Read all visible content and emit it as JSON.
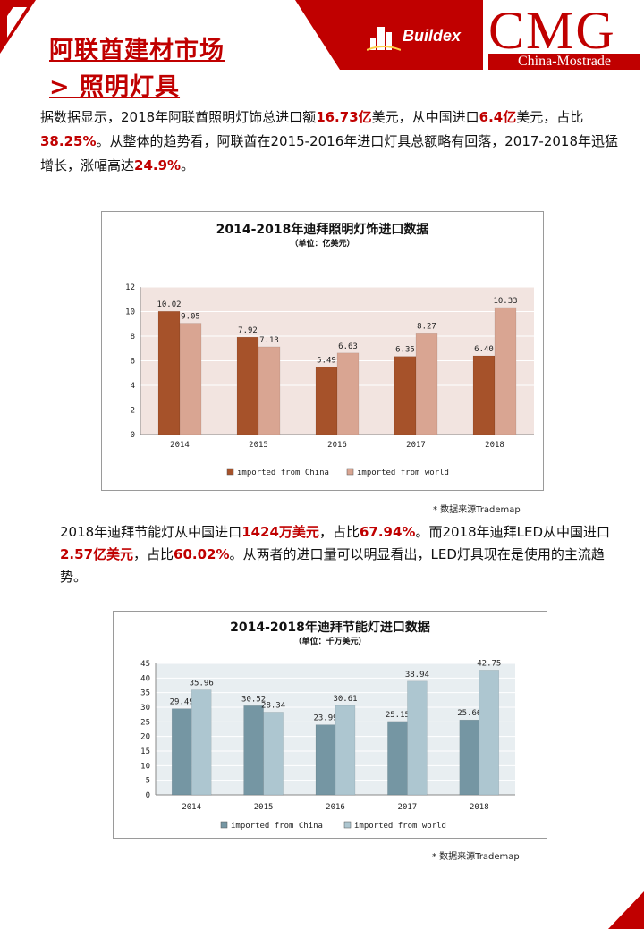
{
  "header": {
    "title_line1": "阿联酋建材市场",
    "title_line2": "> 照明灯具",
    "buildex": "Buildex",
    "cmg": "CMG",
    "cmg_sub": "China-Mostrade"
  },
  "para1": {
    "p1": "据数据显示，2018年阿联酋照明灯饰总进口额",
    "v1": "16.73亿",
    "p2": "美元，从中国进口",
    "v2": "6.4亿",
    "p3": "美元，占比",
    "v3": "38.25%",
    "p4": "。从整体的趋势看，阿联酋在2015-2016年进口灯具总额略有回落，2017-2018年迅猛增长，涨幅高达",
    "v4": "24.9%",
    "p5": "。"
  },
  "para2": {
    "p1": "2018年迪拜节能灯从中国进口",
    "v1": "1424万美元",
    "p2": "，占比",
    "v2": "67.94%",
    "p3": "。而2018年迪拜LED从中国进口",
    "v3": "2.57亿美元",
    "p4": "，占比",
    "v4": "60.02%",
    "p5": "。从两者的进口量可以明显看出，LED灯具现在是使用的主流趋势。"
  },
  "source1": "* 数据来源Trademap",
  "source2": "* 数据来源Trademap",
  "colors": {
    "accent": "#c00000",
    "chart1_china": "#a6522a",
    "chart1_world": "#d9a592",
    "chart1_bg": "#f2e4e0",
    "chart2_china": "#7596a3",
    "chart2_world": "#adc6d0",
    "chart2_bg": "#e8eef1"
  },
  "chart_data": [
    {
      "type": "bar",
      "title": "2014-2018年迪拜照明灯饰进口数据",
      "subtitle": "（单位：亿美元）",
      "categories": [
        "2014",
        "2015",
        "2016",
        "2017",
        "2018"
      ],
      "series": [
        {
          "name": "imported from China",
          "values": [
            10.02,
            7.92,
            5.49,
            6.35,
            6.4
          ]
        },
        {
          "name": "imported from world",
          "values": [
            9.05,
            7.13,
            6.63,
            8.27,
            10.33
          ]
        }
      ],
      "value_labels": {
        "china": [
          "10.02",
          "7.92",
          "5.49",
          "6.35",
          "6.40"
        ],
        "world": [
          "9.05",
          "7.13",
          "6.63",
          "8.27",
          "10.33"
        ]
      },
      "yticks": [
        "0",
        "2",
        "4",
        "6",
        "8",
        "10",
        "12"
      ],
      "ylim": [
        0,
        12
      ],
      "legend_position": "bottom"
    },
    {
      "type": "bar",
      "title": "2014-2018年迪拜节能灯进口数据",
      "subtitle": "（单位：千万美元）",
      "categories": [
        "2014",
        "2015",
        "2016",
        "2017",
        "2018"
      ],
      "series": [
        {
          "name": "imported from China",
          "values": [
            29.49,
            30.52,
            23.99,
            25.15,
            25.66
          ]
        },
        {
          "name": "imported from world",
          "values": [
            35.96,
            28.34,
            30.61,
            38.94,
            42.75
          ]
        }
      ],
      "value_labels": {
        "china": [
          "29.49",
          "30.52",
          "23.99",
          "25.15",
          "25.66"
        ],
        "world": [
          "35.96",
          "28.34",
          "30.61",
          "38.94",
          "42.75"
        ]
      },
      "yticks": [
        "0",
        "5",
        "10",
        "15",
        "20",
        "25",
        "30",
        "35",
        "40",
        "45"
      ],
      "ylim": [
        0,
        45
      ],
      "legend_position": "bottom"
    }
  ]
}
